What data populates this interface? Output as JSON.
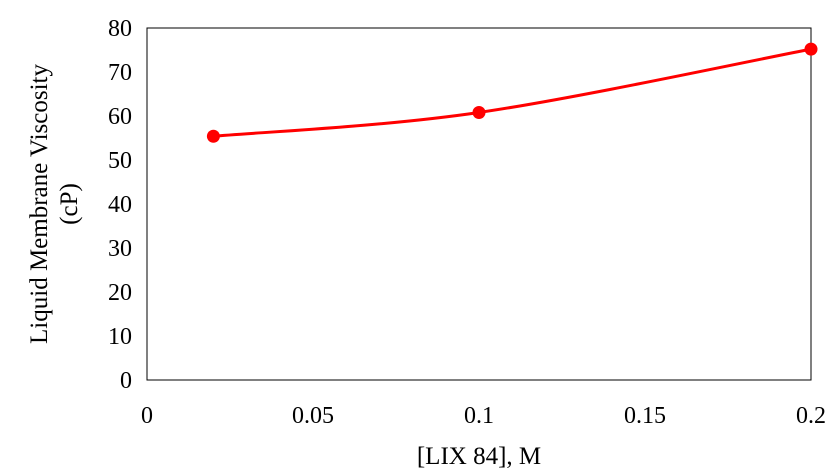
{
  "chart_data": {
    "type": "line",
    "title": "",
    "xlabel": "[LIX 84], M",
    "ylabel_lines": [
      "Liquid Membrane Viscosity",
      "(cP)"
    ],
    "xlim": [
      0,
      0.2
    ],
    "ylim": [
      0,
      80
    ],
    "x_ticks": [
      "0",
      "0.05",
      "0.1",
      "0.15",
      "0.2"
    ],
    "y_ticks": [
      "0",
      "10",
      "20",
      "30",
      "40",
      "50",
      "60",
      "70",
      "80"
    ],
    "grid": false,
    "legend": "none",
    "series": [
      {
        "x": [
          0.02,
          0.1,
          0.2
        ],
        "y": [
          55.4,
          60.8,
          75.2
        ],
        "color": "#ff0000",
        "marker": "circle",
        "smooth": true
      }
    ]
  }
}
